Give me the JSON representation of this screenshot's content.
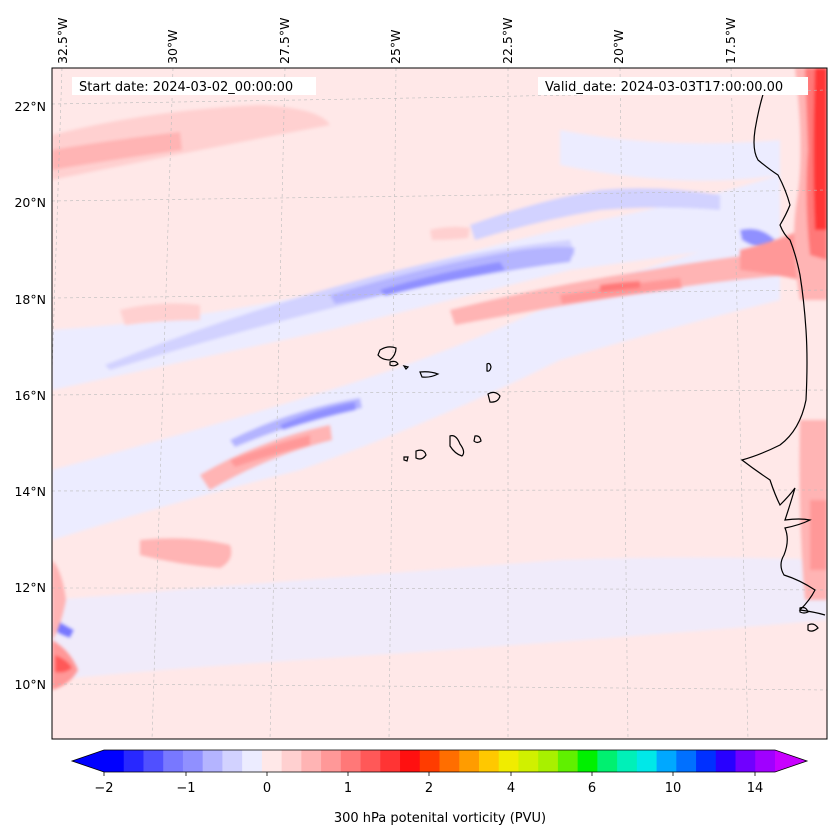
{
  "map": {
    "title_left": "Start date: 2024-03-02_00:00:00",
    "title_right": "Valid_date: 2024-03-03T17:00:00.00",
    "lon_labels": [
      "32.5°W",
      "30°W",
      "27.5°W",
      "25°W",
      "22.5°W",
      "20°W",
      "17.5°W"
    ],
    "lat_labels": [
      "22°N",
      "20°N",
      "18°N",
      "16°N",
      "14°N",
      "12°N",
      "10°N"
    ],
    "coast_color": "#000000",
    "land_outline": "black",
    "field_name": "300 hPa potential vorticity"
  },
  "colorbar": {
    "label": "300 hPa potenital vorticity (PVU)",
    "tick_labels": [
      "−2",
      "−1",
      "0",
      "1",
      "2",
      "4",
      "6",
      "10",
      "14"
    ],
    "colors": [
      "#0000ff",
      "#2828ff",
      "#5050ff",
      "#7878ff",
      "#9090ff",
      "#b4b4ff",
      "#d2d2ff",
      "#ececff",
      "#ffe8e8",
      "#ffd0d0",
      "#ffb4b4",
      "#ff9898",
      "#ff7878",
      "#ff5858",
      "#ff3434",
      "#ff1010",
      "#ff3c00",
      "#ff6e00",
      "#ff9c00",
      "#ffc800",
      "#f0ec00",
      "#d0f000",
      "#a8f000",
      "#60f000",
      "#00f000",
      "#00f070",
      "#00f0b8",
      "#00e8e8",
      "#00a8ff",
      "#0070ff",
      "#0030ff",
      "#2800ff",
      "#7000ff",
      "#a000ff"
    ],
    "over_color": "#c800ff",
    "under_color": "#0000ff"
  }
}
